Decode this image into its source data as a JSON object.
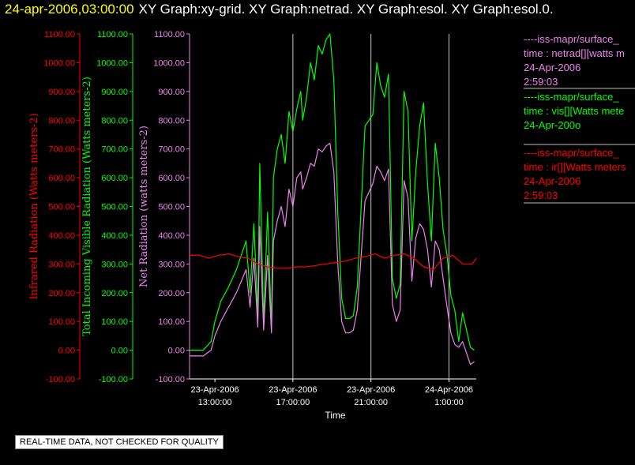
{
  "header": {
    "date": "24-apr-2006,03:00:00",
    "graphs": "XY Graph:xy-grid.  XY Graph:netrad.  XY Graph:esol.  XY Graph:esol.0."
  },
  "legend": [
    {
      "lines": [
        "----iss-mapr/surface_",
        "time : netrad[][watts m",
        "24-Apr-2006",
        "2:59:03"
      ],
      "color": "#ee82ee"
    },
    {
      "lines": [
        "----iss-mapr/surface_",
        "time : vis[][Watts mete",
        "24-Apr-200o"
      ],
      "color": "#00ff00"
    },
    {
      "lines": [
        "----iss-mapr/surface_",
        "time : ir[][Watts meters",
        "24-Apr-2006",
        "2:59:03"
      ],
      "color": "#ff0000"
    }
  ],
  "footer": {
    "quality_note": "REAL-TIME DATA, NOT CHECKED FOR QUALITY"
  },
  "chart_data": {
    "type": "line",
    "xlabel": "Time",
    "x_ticks": [
      {
        "line1": "23-Apr-2006",
        "line2": "13:00:00",
        "hour": 13
      },
      {
        "line1": "23-Apr-2006",
        "line2": "17:00:00",
        "hour": 17
      },
      {
        "line1": "23-Apr-2006",
        "line2": "21:00:00",
        "hour": 21
      },
      {
        "line1": "24-Apr-2006",
        "line2": "1:00:00",
        "hour": 25
      }
    ],
    "xlim_hours": [
      11.7,
      26.4
    ],
    "ylim": [
      -100,
      1100
    ],
    "y_ticks": [
      "-100.00",
      "0.00",
      "100.00",
      "200.00",
      "300.00",
      "400.00",
      "500.00",
      "600.00",
      "700.00",
      "800.00",
      "900.00",
      "1000.00",
      "1100.00"
    ],
    "axes": [
      {
        "label": "Infrared Radiation (Watts meters-2)",
        "color": "#ff0000"
      },
      {
        "label": "Total Incoming Visible Radiation (Watts meters-2)",
        "color": "#00ff00"
      },
      {
        "label": "Net Radiation (watts meters-2)",
        "color": "#ee82ee"
      }
    ],
    "grid_hours": [
      17,
      21,
      25
    ],
    "series": [
      {
        "name": "vis",
        "color": "#00ff00",
        "x": [
          11.7,
          12.4,
          12.8,
          13.0,
          13.3,
          13.7,
          14.1,
          14.6,
          14.8,
          15.0,
          15.2,
          15.3,
          15.5,
          15.7,
          15.9,
          16.0,
          16.2,
          16.4,
          16.6,
          16.8,
          17.0,
          17.2,
          17.4,
          17.5,
          17.7,
          17.9,
          18.1,
          18.3,
          18.5,
          18.7,
          18.9,
          19.1,
          19.3,
          19.5,
          19.7,
          19.9,
          20.1,
          20.3,
          20.5,
          20.7,
          20.9,
          21.1,
          21.3,
          21.5,
          21.7,
          21.9,
          22.1,
          22.3,
          22.5,
          22.7,
          22.9,
          23.1,
          23.3,
          23.5,
          23.7,
          23.9,
          24.1,
          24.3,
          24.5,
          24.7,
          24.9,
          25.1,
          25.3,
          25.5,
          25.7,
          25.9,
          26.1,
          26.3
        ],
        "y": [
          0,
          0,
          30,
          100,
          170,
          220,
          280,
          380,
          200,
          440,
          120,
          650,
          100,
          480,
          80,
          600,
          700,
          750,
          650,
          830,
          760,
          840,
          900,
          800,
          880,
          1000,
          940,
          1060,
          1030,
          1080,
          1110,
          940,
          480,
          180,
          110,
          110,
          120,
          220,
          500,
          780,
          800,
          820,
          1000,
          920,
          880,
          960,
          250,
          180,
          230,
          900,
          830,
          380,
          620,
          780,
          860,
          580,
          380,
          720,
          600,
          420,
          330,
          190,
          140,
          30,
          130,
          70,
          10,
          0
        ]
      },
      {
        "name": "netrad",
        "color": "#ee82ee",
        "x": [
          11.7,
          12.4,
          12.8,
          13.0,
          13.3,
          13.7,
          14.1,
          14.6,
          14.8,
          15.0,
          15.2,
          15.3,
          15.5,
          15.7,
          15.9,
          16.0,
          16.2,
          16.4,
          16.6,
          16.8,
          17.0,
          17.2,
          17.4,
          17.5,
          17.7,
          17.9,
          18.1,
          18.3,
          18.5,
          18.7,
          18.9,
          19.1,
          19.3,
          19.5,
          19.7,
          19.9,
          20.1,
          20.3,
          20.5,
          20.7,
          20.9,
          21.1,
          21.3,
          21.5,
          21.7,
          21.9,
          22.1,
          22.3,
          22.5,
          22.7,
          22.9,
          23.1,
          23.3,
          23.5,
          23.7,
          23.9,
          24.1,
          24.3,
          24.5,
          24.7,
          24.9,
          25.1,
          25.3,
          25.5,
          25.7,
          25.9,
          26.1,
          26.3
        ],
        "y": [
          -20,
          -20,
          0,
          50,
          100,
          150,
          200,
          280,
          150,
          320,
          80,
          430,
          70,
          330,
          60,
          380,
          450,
          500,
          430,
          560,
          500,
          600,
          620,
          560,
          600,
          650,
          640,
          700,
          690,
          710,
          720,
          620,
          300,
          100,
          60,
          60,
          70,
          140,
          330,
          520,
          550,
          580,
          640,
          620,
          590,
          630,
          160,
          100,
          140,
          590,
          530,
          240,
          390,
          440,
          420,
          350,
          220,
          380,
          350,
          250,
          150,
          60,
          20,
          10,
          30,
          -10,
          -50,
          -40
        ]
      },
      {
        "name": "ir",
        "color": "#ff0000",
        "x": [
          11.7,
          12.2,
          12.7,
          13.2,
          13.7,
          14.2,
          14.7,
          15.2,
          15.7,
          16.2,
          16.7,
          17.2,
          17.7,
          18.2,
          18.7,
          19.2,
          19.7,
          20.2,
          20.7,
          21.2,
          21.7,
          22.2,
          22.7,
          23.2,
          23.7,
          24.2,
          24.7,
          25.2,
          25.7,
          26.2,
          26.4
        ],
        "y": [
          330,
          330,
          320,
          330,
          335,
          325,
          320,
          300,
          290,
          285,
          285,
          290,
          290,
          295,
          300,
          305,
          310,
          320,
          325,
          335,
          320,
          330,
          335,
          320,
          290,
          280,
          320,
          330,
          300,
          300,
          320
        ]
      }
    ]
  }
}
